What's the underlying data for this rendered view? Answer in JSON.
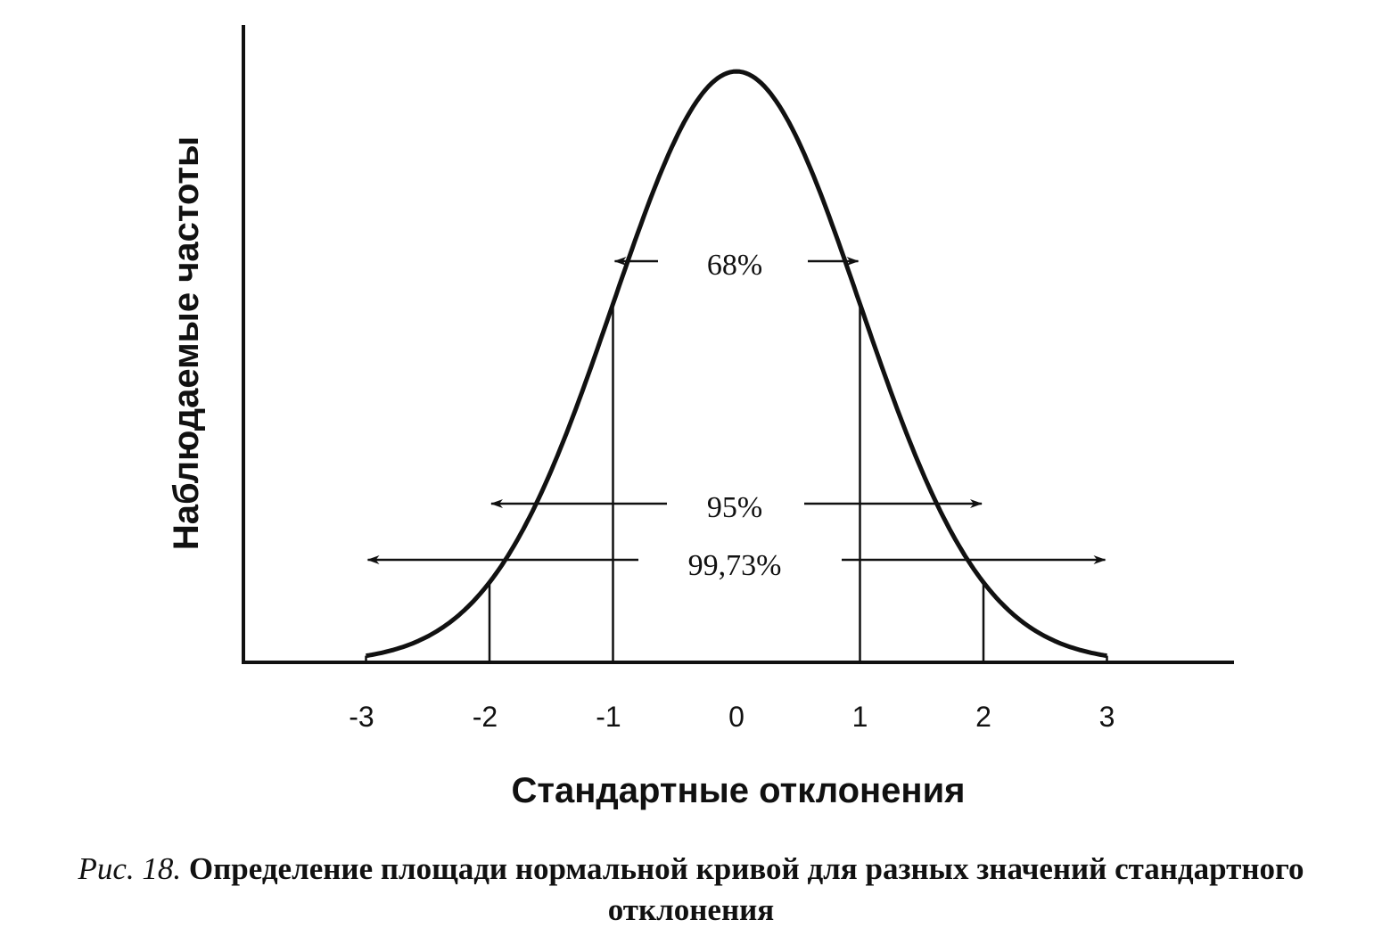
{
  "chart_data": {
    "type": "line",
    "series": [
      {
        "x": [
          -3,
          -2.5,
          -2,
          -1.5,
          -1,
          -0.5,
          0,
          0.5,
          1,
          1.5,
          2,
          2.5,
          3
        ],
        "y": [
          0.0044,
          0.0175,
          0.054,
          0.1295,
          0.242,
          0.352,
          0.399,
          0.352,
          0.242,
          0.1295,
          0.054,
          0.0175,
          0.0044
        ]
      }
    ],
    "xticks": [
      "-3",
      "-2",
      "-1",
      "0",
      "1",
      "2",
      "3"
    ],
    "xlim": [
      -4,
      4
    ],
    "xlabel": "Стандартные отклонения",
    "ylabel": "Наблюдаемые частоты",
    "grid": false,
    "annotations": [
      {
        "label": "68%",
        "from": -1,
        "to": 1
      },
      {
        "label": "95%",
        "from": -2,
        "to": 2
      },
      {
        "label": "99,73%",
        "from": -3,
        "to": 3
      }
    ]
  },
  "caption": {
    "lead": "Рис. 18.",
    "text": "Определение площади нормальной кривой для разных значений стандартного отклонения"
  }
}
